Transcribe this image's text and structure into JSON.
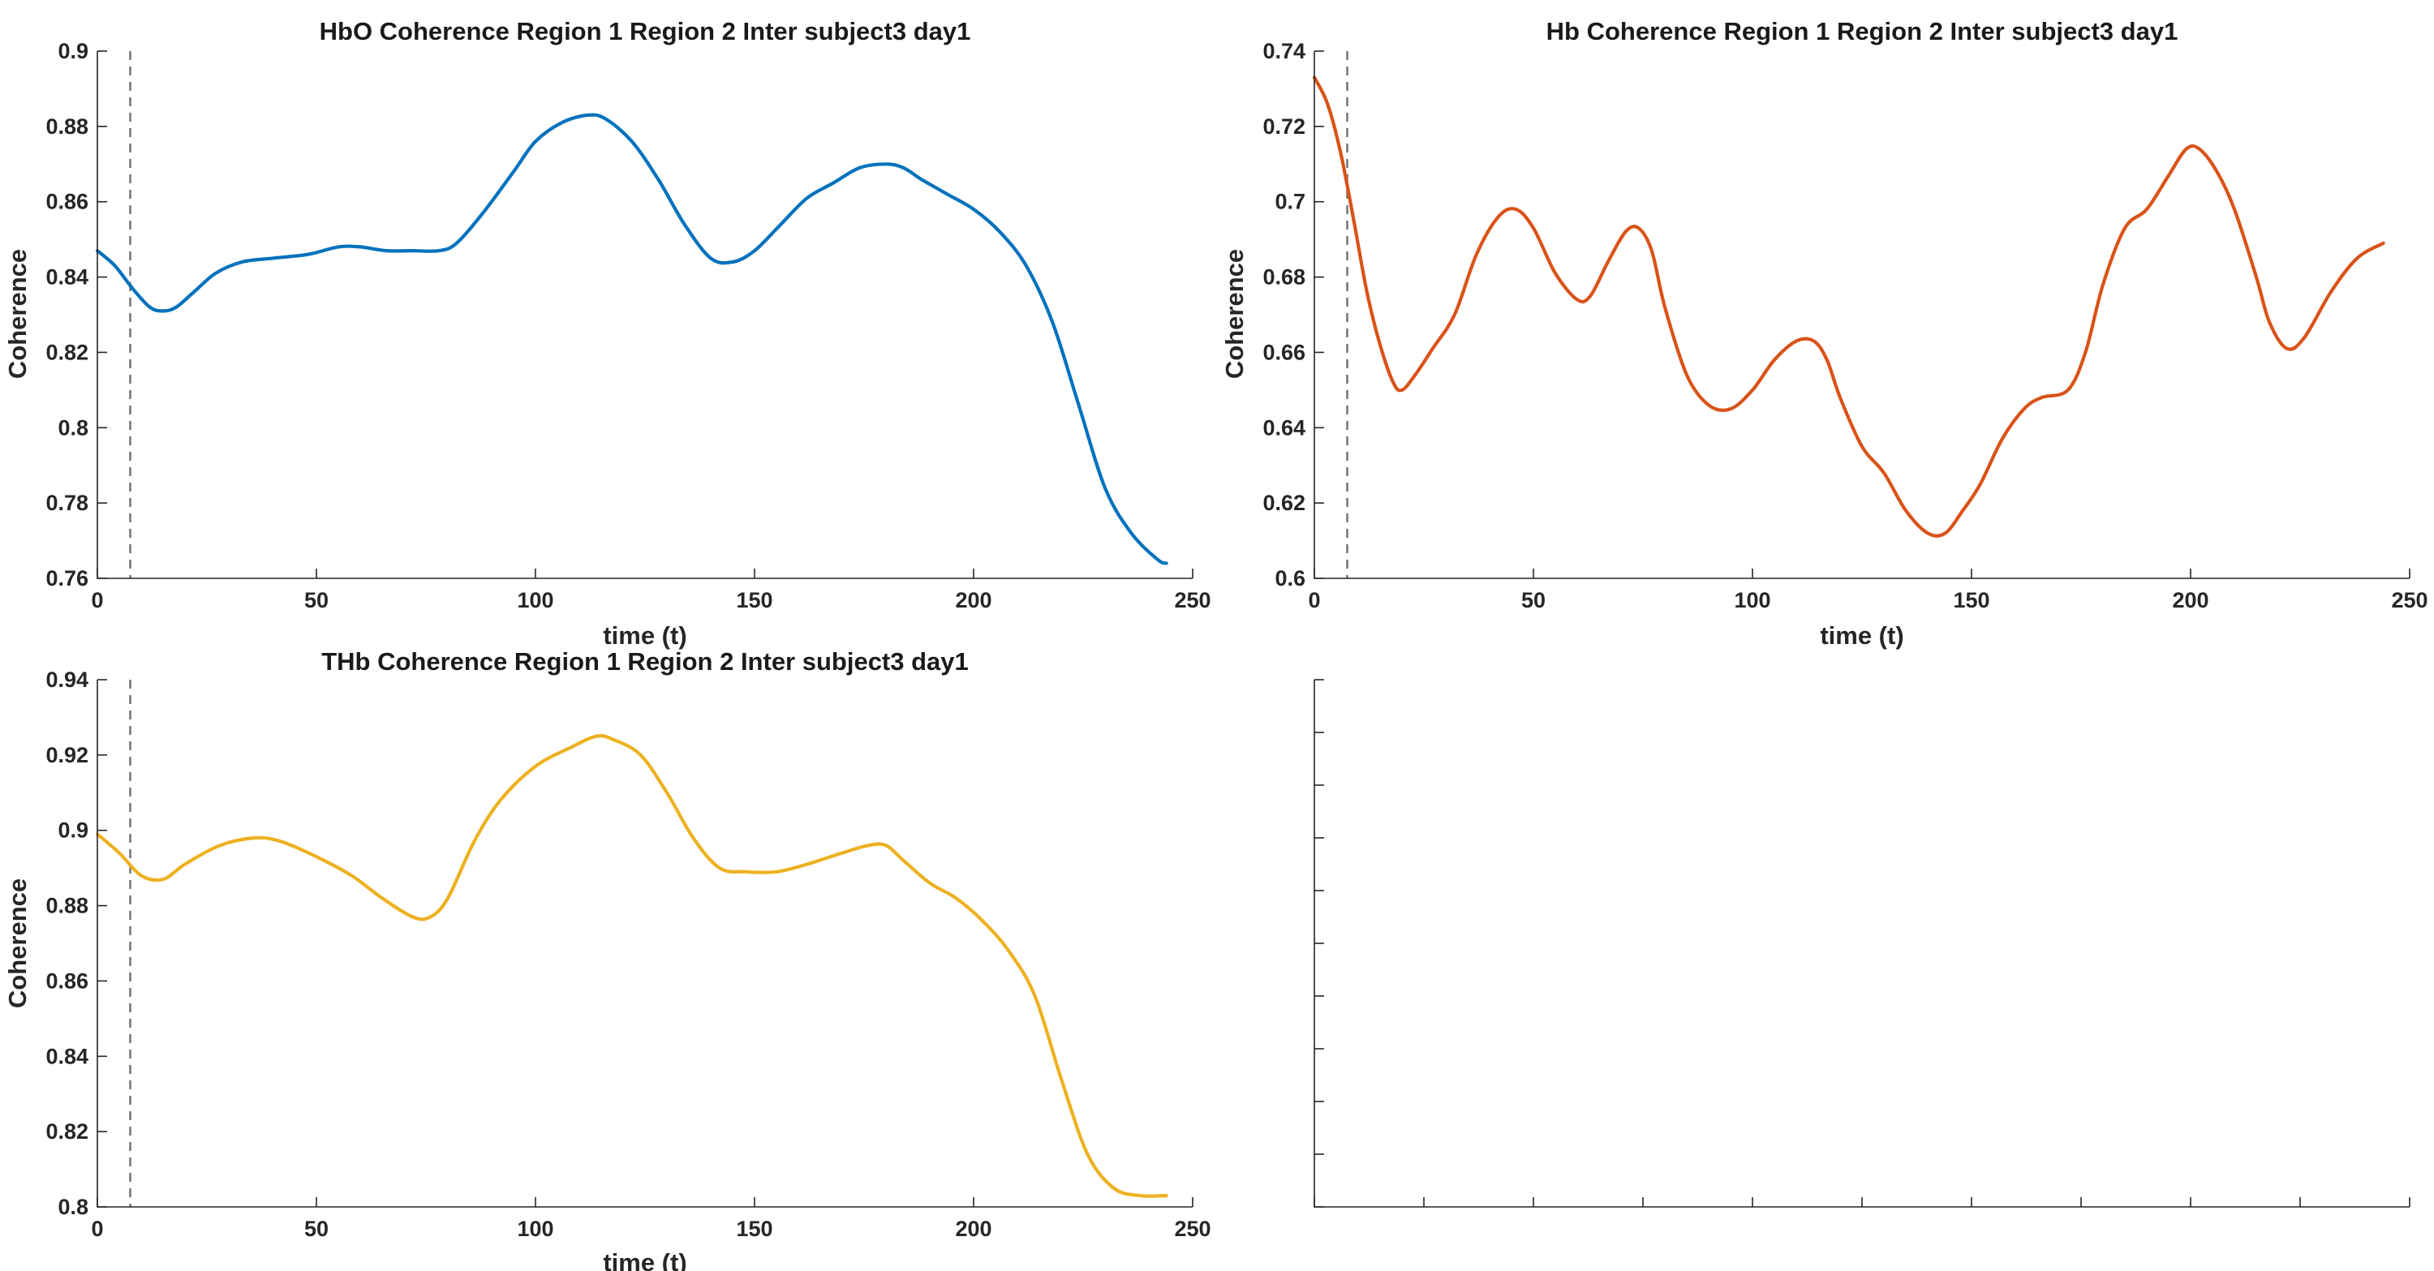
{
  "chart_data": [
    {
      "type": "line",
      "title": "HbO Coherence Region 1 Region 2 Inter subject3 day1",
      "xlabel": "time (t)",
      "ylabel": "Coherence",
      "xlim": [
        0,
        250
      ],
      "ylim": [
        0.76,
        0.9
      ],
      "xticks": [
        0,
        50,
        100,
        150,
        200,
        250
      ],
      "yticks": [
        0.76,
        0.78,
        0.8,
        0.82,
        0.84,
        0.86,
        0.88,
        0.9
      ],
      "xtick_labels": [
        "0",
        "50",
        "100",
        "150",
        "200",
        "250"
      ],
      "ytick_labels": [
        "0.76",
        "0.78",
        "0.8",
        "0.82",
        "0.84",
        "0.86",
        "0.88",
        "0.9"
      ],
      "vline_x": 7.5,
      "grid": false,
      "series": [
        {
          "color": "#0072BD",
          "x": [
            0,
            4,
            8,
            12,
            15,
            18,
            22,
            27,
            33,
            40,
            48,
            55,
            60,
            66,
            72,
            78,
            82,
            88,
            95,
            100,
            106,
            112,
            116,
            122,
            128,
            134,
            140,
            145,
            150,
            156,
            162,
            168,
            174,
            180,
            184,
            188,
            194,
            200,
            206,
            212,
            218,
            224,
            230,
            236,
            242,
            244
          ],
          "y": [
            0.847,
            0.843,
            0.837,
            0.832,
            0.831,
            0.832,
            0.836,
            0.841,
            0.844,
            0.845,
            0.846,
            0.848,
            0.848,
            0.847,
            0.847,
            0.847,
            0.849,
            0.857,
            0.868,
            0.876,
            0.881,
            0.883,
            0.882,
            0.876,
            0.866,
            0.854,
            0.845,
            0.844,
            0.847,
            0.854,
            0.861,
            0.865,
            0.869,
            0.87,
            0.869,
            0.866,
            0.862,
            0.858,
            0.852,
            0.843,
            0.828,
            0.806,
            0.784,
            0.772,
            0.765,
            0.764
          ]
        }
      ]
    },
    {
      "type": "line",
      "title": "Hb Coherence Region 1 Region 2 Inter subject3 day1",
      "xlabel": "time (t)",
      "ylabel": "Coherence",
      "xlim": [
        0,
        250
      ],
      "ylim": [
        0.6,
        0.74
      ],
      "xticks": [
        0,
        50,
        100,
        150,
        200,
        250
      ],
      "yticks": [
        0.6,
        0.62,
        0.64,
        0.66,
        0.68,
        0.7,
        0.72,
        0.74
      ],
      "xtick_labels": [
        "0",
        "50",
        "100",
        "150",
        "200",
        "250"
      ],
      "ytick_labels": [
        "0.6",
        "0.62",
        "0.64",
        "0.66",
        "0.68",
        "0.7",
        "0.72",
        "0.74"
      ],
      "vline_x": 7.5,
      "grid": false,
      "series": [
        {
          "color": "#D95319",
          "x": [
            0,
            3,
            6,
            9,
            12,
            15,
            18,
            20,
            23,
            27,
            32,
            37,
            42,
            46,
            50,
            55,
            60,
            63,
            67,
            71,
            74,
            77,
            80,
            85,
            90,
            95,
            100,
            105,
            110,
            114,
            117,
            120,
            125,
            130,
            135,
            140,
            144,
            148,
            152,
            157,
            162,
            166,
            172,
            176,
            180,
            185,
            190,
            195,
            199,
            202,
            206,
            210,
            215,
            218,
            222,
            226,
            232,
            238,
            244
          ],
          "y": [
            0.733,
            0.726,
            0.713,
            0.695,
            0.676,
            0.662,
            0.652,
            0.65,
            0.654,
            0.661,
            0.67,
            0.686,
            0.696,
            0.698,
            0.693,
            0.681,
            0.674,
            0.675,
            0.684,
            0.692,
            0.693,
            0.687,
            0.672,
            0.654,
            0.646,
            0.645,
            0.65,
            0.658,
            0.663,
            0.663,
            0.658,
            0.648,
            0.635,
            0.628,
            0.618,
            0.612,
            0.612,
            0.618,
            0.625,
            0.637,
            0.645,
            0.648,
            0.65,
            0.66,
            0.678,
            0.693,
            0.698,
            0.707,
            0.714,
            0.714,
            0.708,
            0.698,
            0.68,
            0.668,
            0.661,
            0.664,
            0.676,
            0.685,
            0.689
          ]
        }
      ]
    },
    {
      "type": "line",
      "title": "THb Coherence Region 1 Region 2 Inter subject3 day1",
      "xlabel": "time (t)",
      "ylabel": "Coherence",
      "xlim": [
        0,
        250
      ],
      "ylim": [
        0.8,
        0.94
      ],
      "xticks": [
        0,
        50,
        100,
        150,
        200,
        250
      ],
      "yticks": [
        0.8,
        0.82,
        0.84,
        0.86,
        0.88,
        0.9,
        0.92,
        0.94
      ],
      "xtick_labels": [
        "0",
        "50",
        "100",
        "150",
        "200",
        "250"
      ],
      "ytick_labels": [
        "0.8",
        "0.82",
        "0.84",
        "0.86",
        "0.88",
        "0.9",
        "0.92",
        "0.94"
      ],
      "vline_x": 7.5,
      "grid": false,
      "series": [
        {
          "color": "#EDB120",
          "x": [
            0,
            5,
            10,
            15,
            20,
            28,
            36,
            42,
            50,
            58,
            65,
            72,
            76,
            80,
            86,
            92,
            100,
            108,
            114,
            118,
            124,
            130,
            136,
            142,
            148,
            155,
            162,
            170,
            176,
            180,
            184,
            190,
            196,
            202,
            208,
            214,
            220,
            226,
            232,
            238,
            244
          ],
          "y": [
            0.899,
            0.894,
            0.888,
            0.887,
            0.891,
            0.896,
            0.898,
            0.897,
            0.893,
            0.888,
            0.882,
            0.877,
            0.877,
            0.882,
            0.897,
            0.908,
            0.917,
            0.922,
            0.925,
            0.924,
            0.92,
            0.91,
            0.898,
            0.89,
            0.889,
            0.889,
            0.891,
            0.894,
            0.896,
            0.896,
            0.892,
            0.886,
            0.882,
            0.876,
            0.868,
            0.856,
            0.834,
            0.814,
            0.805,
            0.803,
            0.803
          ]
        }
      ]
    },
    {
      "type": "line",
      "title": "",
      "xlabel": "",
      "ylabel": "",
      "xticks_count": 11,
      "yticks_count": 11,
      "grid": false,
      "series": []
    }
  ]
}
